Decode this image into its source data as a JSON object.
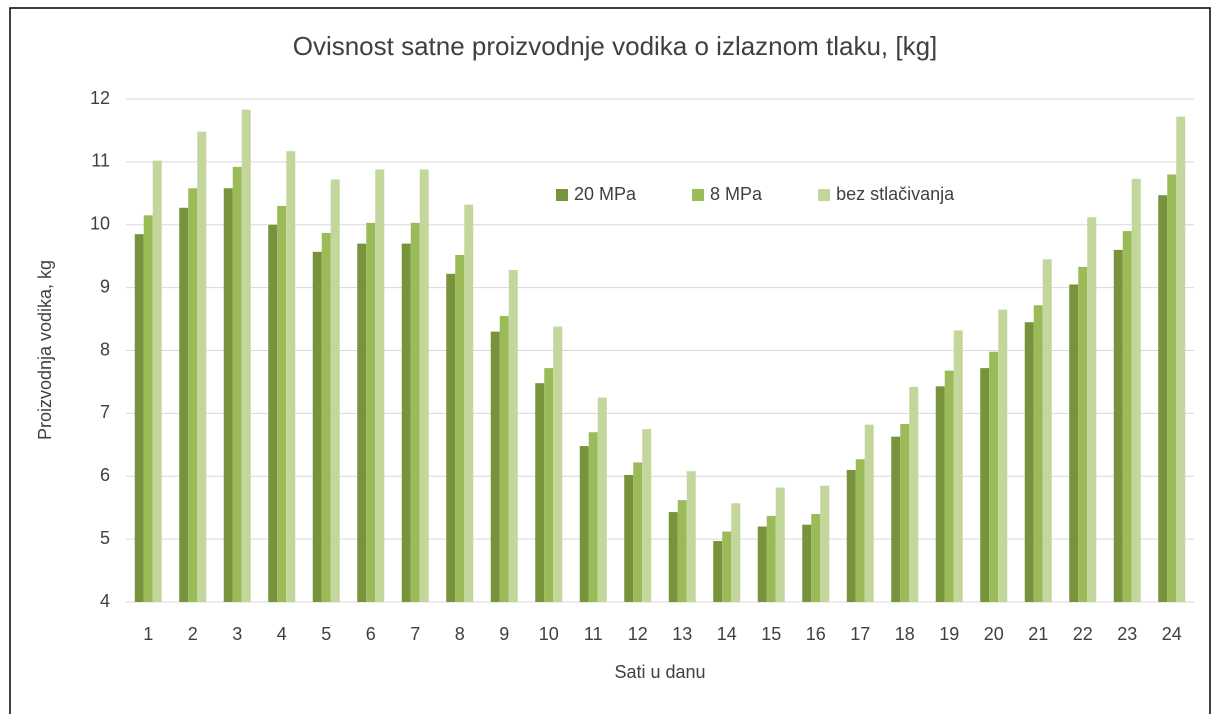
{
  "chart_data": {
    "type": "bar",
    "title": "Ovisnost satne proizvodnje vodika o izlaznom tlaku, [kg]",
    "x_label": "Sati u danu",
    "y_label": "Proizvodnja vodika, kg",
    "categories": [
      "1",
      "2",
      "3",
      "4",
      "5",
      "6",
      "7",
      "8",
      "9",
      "10",
      "11",
      "12",
      "13",
      "14",
      "15",
      "16",
      "17",
      "18",
      "19",
      "20",
      "21",
      "22",
      "23",
      "24"
    ],
    "series": [
      {
        "name": "20 MPa",
        "color": "#77933c",
        "values": [
          9.85,
          10.27,
          10.58,
          10.0,
          9.57,
          9.7,
          9.7,
          9.22,
          8.3,
          7.48,
          6.48,
          6.02,
          5.43,
          4.97,
          5.2,
          5.23,
          6.1,
          6.63,
          7.43,
          7.72,
          8.45,
          9.05,
          9.6,
          10.47
        ]
      },
      {
        "name": "8 MPa",
        "color": "#9bbb59",
        "values": [
          10.15,
          10.58,
          10.92,
          10.3,
          9.87,
          10.03,
          10.03,
          9.52,
          8.55,
          7.72,
          6.7,
          6.22,
          5.62,
          5.12,
          5.37,
          5.4,
          6.27,
          6.83,
          7.68,
          7.98,
          8.72,
          9.33,
          9.9,
          10.8
        ]
      },
      {
        "name": "bez stlačivanja",
        "color": "#c3d69b",
        "values": [
          11.02,
          11.48,
          11.83,
          11.17,
          10.72,
          10.88,
          10.88,
          10.32,
          9.28,
          8.38,
          7.25,
          6.75,
          6.08,
          5.57,
          5.82,
          5.85,
          6.82,
          7.42,
          8.32,
          8.65,
          9.45,
          10.12,
          10.73,
          11.72
        ]
      }
    ],
    "ylim": [
      4,
      12
    ],
    "yticks": [
      4,
      5,
      6,
      7,
      8,
      9,
      10,
      11,
      12
    ],
    "grid": true,
    "legend": "top"
  }
}
